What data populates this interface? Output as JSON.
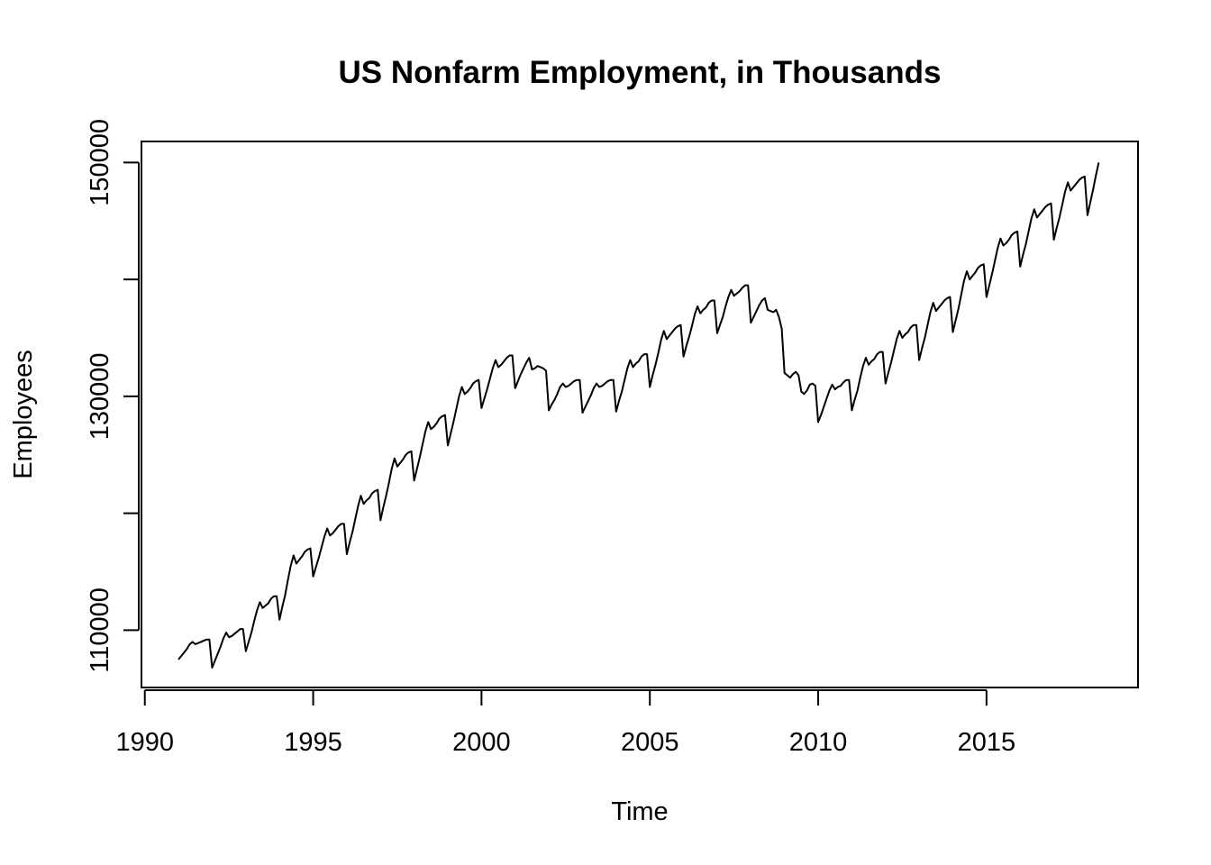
{
  "chart_data": {
    "type": "line",
    "title": "US Nonfarm Employment, in Thousands",
    "x_label": "Time",
    "y_label": "Employees",
    "x": [
      1991,
      1991.083,
      1991.167,
      1991.25,
      1991.333,
      1991.417,
      1991.5,
      1991.583,
      1991.667,
      1991.75,
      1991.833,
      1991.917,
      1992,
      1992.083,
      1992.167,
      1992.25,
      1992.333,
      1992.417,
      1992.5,
      1992.583,
      1992.667,
      1992.75,
      1992.833,
      1992.917,
      1993,
      1993.083,
      1993.167,
      1993.25,
      1993.333,
      1993.417,
      1993.5,
      1993.583,
      1993.667,
      1993.75,
      1993.833,
      1993.917,
      1994,
      1994.083,
      1994.167,
      1994.25,
      1994.333,
      1994.417,
      1994.5,
      1994.583,
      1994.667,
      1994.75,
      1994.833,
      1994.917,
      1995,
      1995.083,
      1995.167,
      1995.25,
      1995.333,
      1995.417,
      1995.5,
      1995.583,
      1995.667,
      1995.75,
      1995.833,
      1995.917,
      1996,
      1996.083,
      1996.167,
      1996.25,
      1996.333,
      1996.417,
      1996.5,
      1996.583,
      1996.667,
      1996.75,
      1996.833,
      1996.917,
      1997,
      1997.083,
      1997.167,
      1997.25,
      1997.333,
      1997.417,
      1997.5,
      1997.583,
      1997.667,
      1997.75,
      1997.833,
      1997.917,
      1998,
      1998.083,
      1998.167,
      1998.25,
      1998.333,
      1998.417,
      1998.5,
      1998.583,
      1998.667,
      1998.75,
      1998.833,
      1998.917,
      1999,
      1999.083,
      1999.167,
      1999.25,
      1999.333,
      1999.417,
      1999.5,
      1999.583,
      1999.667,
      1999.75,
      1999.833,
      1999.917,
      2000,
      2000.083,
      2000.167,
      2000.25,
      2000.333,
      2000.417,
      2000.5,
      2000.583,
      2000.667,
      2000.75,
      2000.833,
      2000.917,
      2001,
      2001.083,
      2001.167,
      2001.25,
      2001.333,
      2001.417,
      2001.5,
      2001.583,
      2001.667,
      2001.75,
      2001.833,
      2001.917,
      2002,
      2002.083,
      2002.167,
      2002.25,
      2002.333,
      2002.417,
      2002.5,
      2002.583,
      2002.667,
      2002.75,
      2002.833,
      2002.917,
      2003,
      2003.083,
      2003.167,
      2003.25,
      2003.333,
      2003.417,
      2003.5,
      2003.583,
      2003.667,
      2003.75,
      2003.833,
      2003.917,
      2004,
      2004.083,
      2004.167,
      2004.25,
      2004.333,
      2004.417,
      2004.5,
      2004.583,
      2004.667,
      2004.75,
      2004.833,
      2004.917,
      2005,
      2005.083,
      2005.167,
      2005.25,
      2005.333,
      2005.417,
      2005.5,
      2005.583,
      2005.667,
      2005.75,
      2005.833,
      2005.917,
      2006,
      2006.083,
      2006.167,
      2006.25,
      2006.333,
      2006.417,
      2006.5,
      2006.583,
      2006.667,
      2006.75,
      2006.833,
      2006.917,
      2007,
      2007.083,
      2007.167,
      2007.25,
      2007.333,
      2007.417,
      2007.5,
      2007.583,
      2007.667,
      2007.75,
      2007.833,
      2007.917,
      2008,
      2008.083,
      2008.167,
      2008.25,
      2008.333,
      2008.417,
      2008.5,
      2008.583,
      2008.667,
      2008.75,
      2008.833,
      2008.917,
      2009,
      2009.083,
      2009.167,
      2009.25,
      2009.333,
      2009.417,
      2009.5,
      2009.583,
      2009.667,
      2009.75,
      2009.833,
      2009.917,
      2010,
      2010.083,
      2010.167,
      2010.25,
      2010.333,
      2010.417,
      2010.5,
      2010.583,
      2010.667,
      2010.75,
      2010.833,
      2010.917,
      2011,
      2011.083,
      2011.167,
      2011.25,
      2011.333,
      2011.417,
      2011.5,
      2011.583,
      2011.667,
      2011.75,
      2011.833,
      2011.917,
      2012,
      2012.083,
      2012.167,
      2012.25,
      2012.333,
      2012.417,
      2012.5,
      2012.583,
      2012.667,
      2012.75,
      2012.833,
      2012.917,
      2013,
      2013.083,
      2013.167,
      2013.25,
      2013.333,
      2013.417,
      2013.5,
      2013.583,
      2013.667,
      2013.75,
      2013.833,
      2013.917,
      2014,
      2014.083,
      2014.167,
      2014.25,
      2014.333,
      2014.417,
      2014.5,
      2014.583,
      2014.667,
      2014.75,
      2014.833,
      2014.917,
      2015,
      2015.083,
      2015.167,
      2015.25,
      2015.333,
      2015.417,
      2015.5,
      2015.583,
      2015.667,
      2015.75,
      2015.833,
      2015.917,
      2016,
      2016.083,
      2016.167,
      2016.25,
      2016.333,
      2016.417,
      2016.5,
      2016.583,
      2016.667,
      2016.75,
      2016.833,
      2016.917,
      2017,
      2017.083,
      2017.167,
      2017.25,
      2017.333,
      2017.417,
      2017.5,
      2017.583,
      2017.667,
      2017.75,
      2017.833,
      2017.917,
      2018,
      2018.083,
      2018.167,
      2018.25,
      2018.333
    ],
    "values": [
      107500,
      107800,
      108100,
      108400,
      108800,
      109000,
      108800,
      108900,
      109000,
      109100,
      109200,
      109200,
      106800,
      107400,
      108000,
      108600,
      109300,
      109800,
      109400,
      109500,
      109700,
      109900,
      110100,
      110100,
      108200,
      109000,
      109800,
      110800,
      111700,
      112400,
      111900,
      112100,
      112300,
      112700,
      112900,
      112900,
      110900,
      112000,
      113000,
      114300,
      115500,
      116400,
      115700,
      116000,
      116300,
      116700,
      116900,
      117000,
      114600,
      115400,
      116200,
      117100,
      118000,
      118700,
      118100,
      118300,
      118600,
      118900,
      119100,
      119100,
      116500,
      117500,
      118400,
      119500,
      120600,
      121500,
      120800,
      121100,
      121300,
      121700,
      121900,
      122000,
      119400,
      120500,
      121500,
      122600,
      123800,
      124700,
      124000,
      124300,
      124600,
      125000,
      125200,
      125300,
      122800,
      123800,
      124800,
      125900,
      127000,
      127800,
      127200,
      127400,
      127700,
      128100,
      128300,
      128400,
      125800,
      126800,
      127800,
      128900,
      130000,
      130800,
      130200,
      130400,
      130700,
      131100,
      131300,
      131400,
      129000,
      129800,
      130600,
      131500,
      132400,
      133100,
      132500,
      132700,
      133000,
      133300,
      133500,
      133500,
      130700,
      131300,
      131900,
      132400,
      132900,
      133300,
      132300,
      132400,
      132600,
      132500,
      132400,
      132200,
      128800,
      129300,
      129700,
      130200,
      130800,
      131100,
      130800,
      130900,
      131100,
      131300,
      131400,
      131400,
      128600,
      129100,
      129600,
      130100,
      130700,
      131100,
      130800,
      130900,
      131100,
      131300,
      131400,
      131400,
      128700,
      129600,
      130400,
      131400,
      132400,
      133100,
      132500,
      132800,
      133000,
      133400,
      133600,
      133600,
      130800,
      131800,
      132700,
      133700,
      134800,
      135600,
      134900,
      135200,
      135500,
      135800,
      136000,
      136100,
      133400,
      134300,
      135100,
      136000,
      137000,
      137700,
      137100,
      137400,
      137600,
      138000,
      138200,
      138200,
      135400,
      136100,
      136800,
      137700,
      138500,
      139100,
      138600,
      138800,
      139000,
      139300,
      139500,
      139500,
      136300,
      136800,
      137300,
      137800,
      138200,
      138400,
      137400,
      137300,
      137200,
      137400,
      136800,
      135800,
      132000,
      131800,
      131600,
      131900,
      132100,
      131800,
      130400,
      130200,
      130500,
      131000,
      131100,
      130900,
      127800,
      128400,
      129100,
      129800,
      130500,
      131000,
      130600,
      130800,
      130900,
      131200,
      131400,
      131400,
      128800,
      129700,
      130500,
      131600,
      132600,
      133300,
      132700,
      133000,
      133200,
      133600,
      133800,
      133800,
      131100,
      132000,
      132900,
      133900,
      134900,
      135600,
      135000,
      135300,
      135500,
      135900,
      136100,
      136100,
      133100,
      134100,
      135000,
      136100,
      137200,
      138000,
      137300,
      137600,
      137900,
      138200,
      138400,
      138500,
      135500,
      136500,
      137500,
      138700,
      139900,
      140700,
      140000,
      140300,
      140600,
      141000,
      141200,
      141300,
      138500,
      139500,
      140500,
      141600,
      142700,
      143500,
      142900,
      143100,
      143400,
      143800,
      144000,
      144100,
      141100,
      142100,
      143000,
      144100,
      145200,
      146000,
      145300,
      145600,
      145900,
      146200,
      146400,
      146500,
      143400,
      144400,
      145300,
      146400,
      147500,
      148300,
      147600,
      147900,
      148200,
      148500,
      148700,
      148800,
      145500,
      146600,
      147700,
      148900,
      150000
    ],
    "color": "#000000",
    "xlim": [
      1989.9,
      2019.5
    ],
    "ylim": [
      105100,
      151800
    ],
    "xticks": [
      1990,
      1995,
      2000,
      2005,
      2010,
      2015
    ],
    "yticks": [
      110000,
      {
        "value": 120000,
        "label": null
      },
      130000,
      {
        "value": 140000,
        "label": null
      },
      150000
    ]
  }
}
